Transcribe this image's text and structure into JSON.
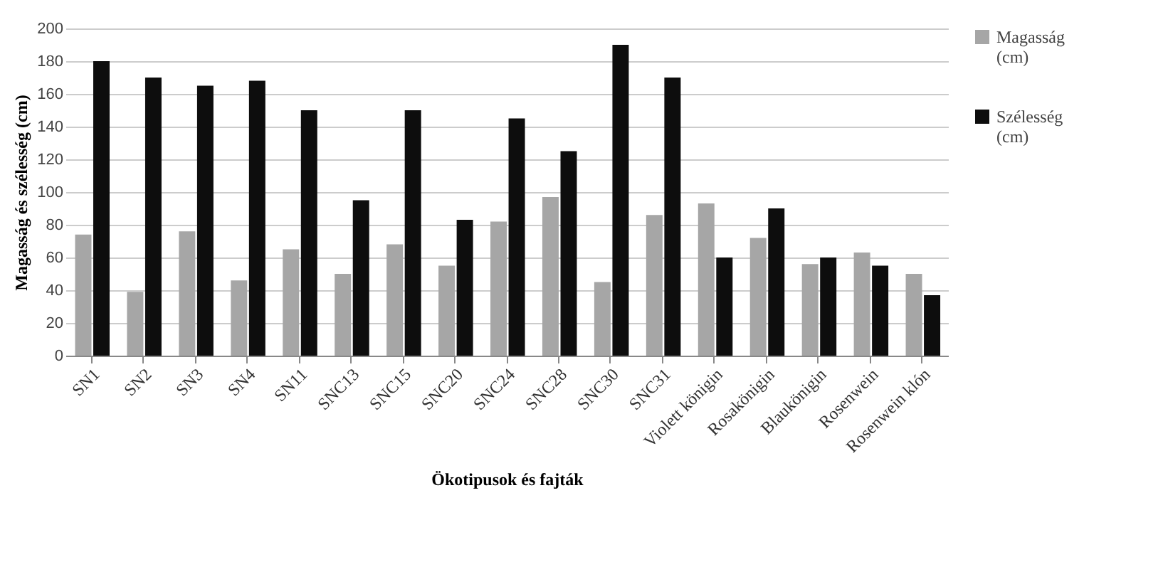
{
  "chart_data": {
    "type": "bar",
    "xlabel": "Ökotipusok és fajták",
    "ylabel": "Magasság és szélesség (cm)",
    "categories": [
      "SN1",
      "SN2",
      "SN3",
      "SN4",
      "SN11",
      "SNC13",
      "SNC15",
      "SNC20",
      "SNC24",
      "SNC28",
      "SNC30",
      "SNC31",
      "Violett königin",
      "Rosakönigin",
      "Blaukönigin",
      "Rosenwein",
      "Rosenwein klón"
    ],
    "series": [
      {
        "name": "Magasság (cm)",
        "color": "#a6a6a6",
        "values": [
          74,
          39,
          76,
          46,
          65,
          50,
          68,
          55,
          82,
          97,
          45,
          86,
          93,
          72,
          56,
          63,
          50
        ]
      },
      {
        "name": "Szélesség (cm)",
        "color": "#0d0d0d",
        "values": [
          180,
          170,
          165,
          168,
          150,
          95,
          150,
          83,
          145,
          125,
          190,
          170,
          60,
          90,
          60,
          55,
          37
        ]
      }
    ],
    "ylim": [
      0,
      200
    ],
    "yticks": [
      0,
      20,
      40,
      60,
      80,
      100,
      120,
      140,
      160,
      180,
      200
    ],
    "grid": "y",
    "legend": "right"
  }
}
